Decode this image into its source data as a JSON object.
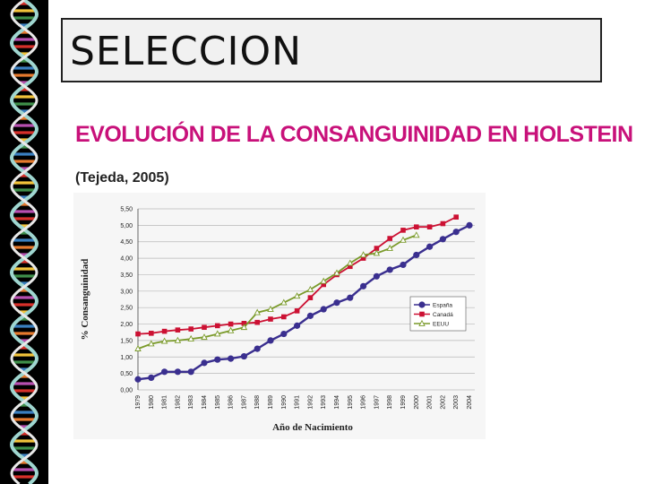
{
  "slide": {
    "title": "SELECCION",
    "heading": "EVOLUCIÓN DE LA CONSANGUINIDAD EN HOLSTEIN",
    "source": "(Tejeda, 2005)"
  },
  "decor": {
    "strip": "dna-helix-icon"
  },
  "chart_data": {
    "type": "line",
    "title": "",
    "xlabel": "Año de Nacimiento",
    "ylabel": "% Consanguinidad",
    "x": [
      "1979",
      "1980",
      "1981",
      "1982",
      "1983",
      "1984",
      "1985",
      "1986",
      "1987",
      "1988",
      "1989",
      "1990",
      "1991",
      "1992",
      "1993",
      "1994",
      "1995",
      "1996",
      "1997",
      "1998",
      "1999",
      "2000",
      "2001",
      "2002",
      "2003",
      "2004"
    ],
    "yticks": [
      "0,00",
      "0,50",
      "1,00",
      "1,50",
      "2,00",
      "2,50",
      "3,00",
      "3,50",
      "4,00",
      "4,50",
      "5,00",
      "5,50"
    ],
    "ylim": [
      0,
      5.5
    ],
    "grid": true,
    "legend_position": "right",
    "series": [
      {
        "name": "España",
        "color": "#3a2f8f",
        "marker": "circle",
        "values": [
          0.32,
          0.37,
          0.55,
          0.55,
          0.55,
          0.82,
          0.92,
          0.95,
          1.02,
          1.25,
          1.5,
          1.7,
          1.95,
          2.25,
          2.45,
          2.65,
          2.8,
          3.15,
          3.45,
          3.65,
          3.8,
          4.1,
          4.35,
          4.58,
          4.8,
          5.0
        ]
      },
      {
        "name": "Canadá",
        "color": "#cc1133",
        "marker": "square",
        "values": [
          1.7,
          1.72,
          1.78,
          1.82,
          1.85,
          1.9,
          1.95,
          2.0,
          2.02,
          2.05,
          2.15,
          2.22,
          2.4,
          2.8,
          3.2,
          3.5,
          3.75,
          4.0,
          4.3,
          4.6,
          4.85,
          4.95,
          4.95,
          5.05,
          5.25,
          null
        ]
      },
      {
        "name": "EEUU",
        "color": "#7a9a2a",
        "marker": "triangle",
        "values": [
          1.25,
          1.4,
          1.48,
          1.5,
          1.55,
          1.6,
          1.7,
          1.8,
          1.9,
          2.35,
          2.45,
          2.65,
          2.85,
          3.05,
          3.3,
          3.55,
          3.85,
          4.1,
          4.15,
          4.3,
          4.55,
          4.7,
          null,
          null,
          null,
          null
        ]
      }
    ]
  }
}
